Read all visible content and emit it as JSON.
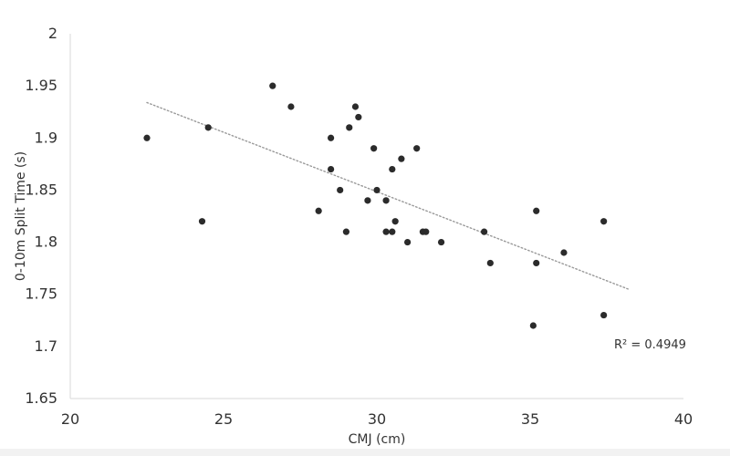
{
  "chart_data": {
    "type": "scatter",
    "title": "",
    "xlabel": "CMJ (cm)",
    "ylabel": "0-10m Split Time (s)",
    "xlim": [
      20,
      40
    ],
    "ylim": [
      1.65,
      2
    ],
    "x_ticks": [
      20,
      25,
      30,
      35,
      40
    ],
    "y_ticks": [
      1.65,
      1.7,
      1.75,
      1.8,
      1.85,
      1.9,
      1.95,
      2
    ],
    "x_tick_labels": [
      "20",
      "25",
      "30",
      "35",
      "40"
    ],
    "y_tick_labels": [
      "1.65",
      "1.7",
      "1.75",
      "1.8",
      "1.85",
      "1.9",
      "1.95",
      "2"
    ],
    "grid": false,
    "marker_color": "#2b2b2b",
    "trendline_color": "#999999",
    "points": [
      {
        "x": 22.5,
        "y": 1.9
      },
      {
        "x": 24.3,
        "y": 1.82
      },
      {
        "x": 24.5,
        "y": 1.91
      },
      {
        "x": 26.6,
        "y": 1.95
      },
      {
        "x": 27.2,
        "y": 1.93
      },
      {
        "x": 28.1,
        "y": 1.83
      },
      {
        "x": 28.5,
        "y": 1.9
      },
      {
        "x": 28.5,
        "y": 1.87
      },
      {
        "x": 28.8,
        "y": 1.85
      },
      {
        "x": 29.0,
        "y": 1.81
      },
      {
        "x": 29.1,
        "y": 1.91
      },
      {
        "x": 29.3,
        "y": 1.93
      },
      {
        "x": 29.4,
        "y": 1.92
      },
      {
        "x": 29.7,
        "y": 1.84
      },
      {
        "x": 29.9,
        "y": 1.89
      },
      {
        "x": 30.0,
        "y": 1.85
      },
      {
        "x": 30.3,
        "y": 1.84
      },
      {
        "x": 30.3,
        "y": 1.81
      },
      {
        "x": 30.5,
        "y": 1.87
      },
      {
        "x": 30.5,
        "y": 1.81
      },
      {
        "x": 30.6,
        "y": 1.82
      },
      {
        "x": 30.8,
        "y": 1.88
      },
      {
        "x": 31.0,
        "y": 1.8
      },
      {
        "x": 31.3,
        "y": 1.89
      },
      {
        "x": 31.5,
        "y": 1.81
      },
      {
        "x": 31.6,
        "y": 1.81
      },
      {
        "x": 32.1,
        "y": 1.8
      },
      {
        "x": 33.5,
        "y": 1.81
      },
      {
        "x": 33.7,
        "y": 1.78
      },
      {
        "x": 35.1,
        "y": 1.72
      },
      {
        "x": 35.2,
        "y": 1.83
      },
      {
        "x": 35.2,
        "y": 1.78
      },
      {
        "x": 36.1,
        "y": 1.79
      },
      {
        "x": 37.4,
        "y": 1.82
      },
      {
        "x": 37.4,
        "y": 1.73
      }
    ],
    "trendline": {
      "style": "dotted",
      "x_start": 22.5,
      "y_start": 1.934,
      "x_end": 38.2,
      "y_end": 1.755,
      "r2_text": "R² = 0.4949"
    }
  }
}
